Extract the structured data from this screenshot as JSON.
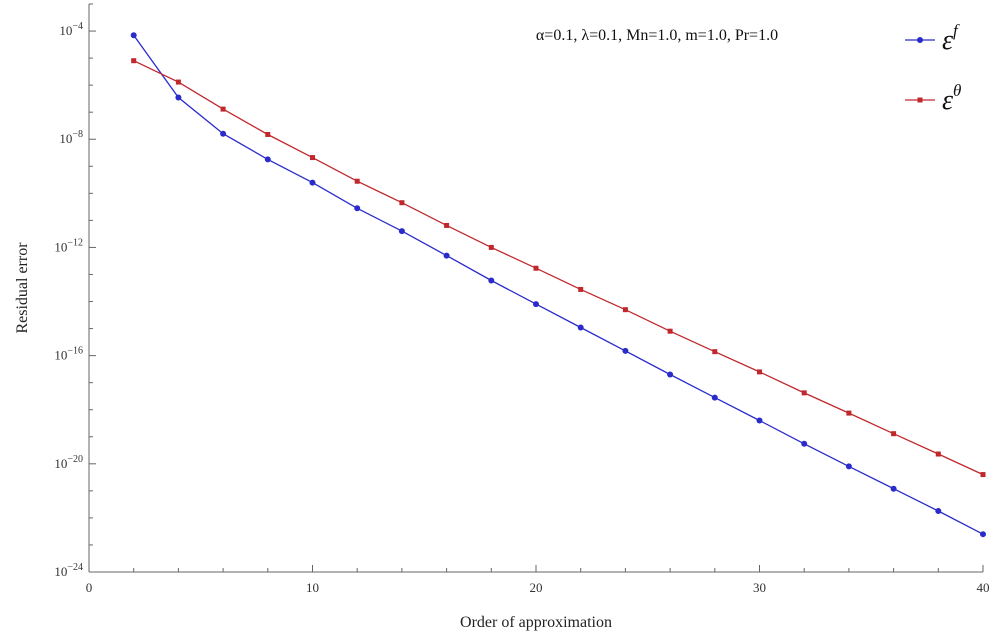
{
  "chart_data": {
    "type": "line",
    "title": "",
    "xlabel": "Order of approximation",
    "ylabel": "Residual error",
    "annotation": "α=0.1, λ=0.1, Mn=1.0, m=1.0, Pr=1.0",
    "xlim": [
      0,
      40
    ],
    "ylim": [
      1e-24,
      0.001
    ],
    "yscale": "log",
    "x_ticks": [
      {
        "value": 0,
        "label": "0"
      },
      {
        "value": 10,
        "label": "10"
      },
      {
        "value": 20,
        "label": "20"
      },
      {
        "value": 30,
        "label": "30"
      },
      {
        "value": 40,
        "label": "40"
      }
    ],
    "y_ticks": [
      {
        "exp": -4,
        "base": "10",
        "sup": "−4"
      },
      {
        "exp": -8,
        "base": "10",
        "sup": "−8"
      },
      {
        "exp": -12,
        "base": "10",
        "sup": "−12"
      },
      {
        "exp": -16,
        "base": "10",
        "sup": "−16"
      },
      {
        "exp": -20,
        "base": "10",
        "sup": "−20"
      },
      {
        "exp": -24,
        "base": "10",
        "sup": "−24"
      }
    ],
    "grid": false,
    "legend_position": "top-right",
    "x": [
      2,
      4,
      6,
      8,
      10,
      12,
      14,
      16,
      18,
      20,
      22,
      24,
      26,
      28,
      30,
      32,
      34,
      36,
      38,
      40
    ],
    "series": [
      {
        "name": "ε^f",
        "legend_base": "ε",
        "legend_sup": "f",
        "color": "#2b2bcc",
        "marker": "circle",
        "values": [
          7e-05,
          3.5e-07,
          1.6e-08,
          1.8e-09,
          2.5e-10,
          2.8e-11,
          4e-12,
          5e-13,
          6e-14,
          8e-15,
          1.1e-15,
          1.5e-16,
          2e-17,
          2.8e-18,
          4e-19,
          5.5e-20,
          8e-21,
          1.2e-21,
          1.8e-22,
          2.5e-23
        ]
      },
      {
        "name": "ε^θ",
        "legend_base": "ε",
        "legend_sup": "θ",
        "color": "#c0282d",
        "marker": "square",
        "values": [
          8e-06,
          1.3e-06,
          1.3e-07,
          1.5e-08,
          2.1e-09,
          2.8e-10,
          4.5e-11,
          6.5e-12,
          1e-12,
          1.7e-13,
          2.8e-14,
          5e-15,
          8e-16,
          1.4e-16,
          2.5e-17,
          4.2e-18,
          7.5e-19,
          1.3e-19,
          2.3e-20,
          4e-21
        ]
      }
    ]
  }
}
